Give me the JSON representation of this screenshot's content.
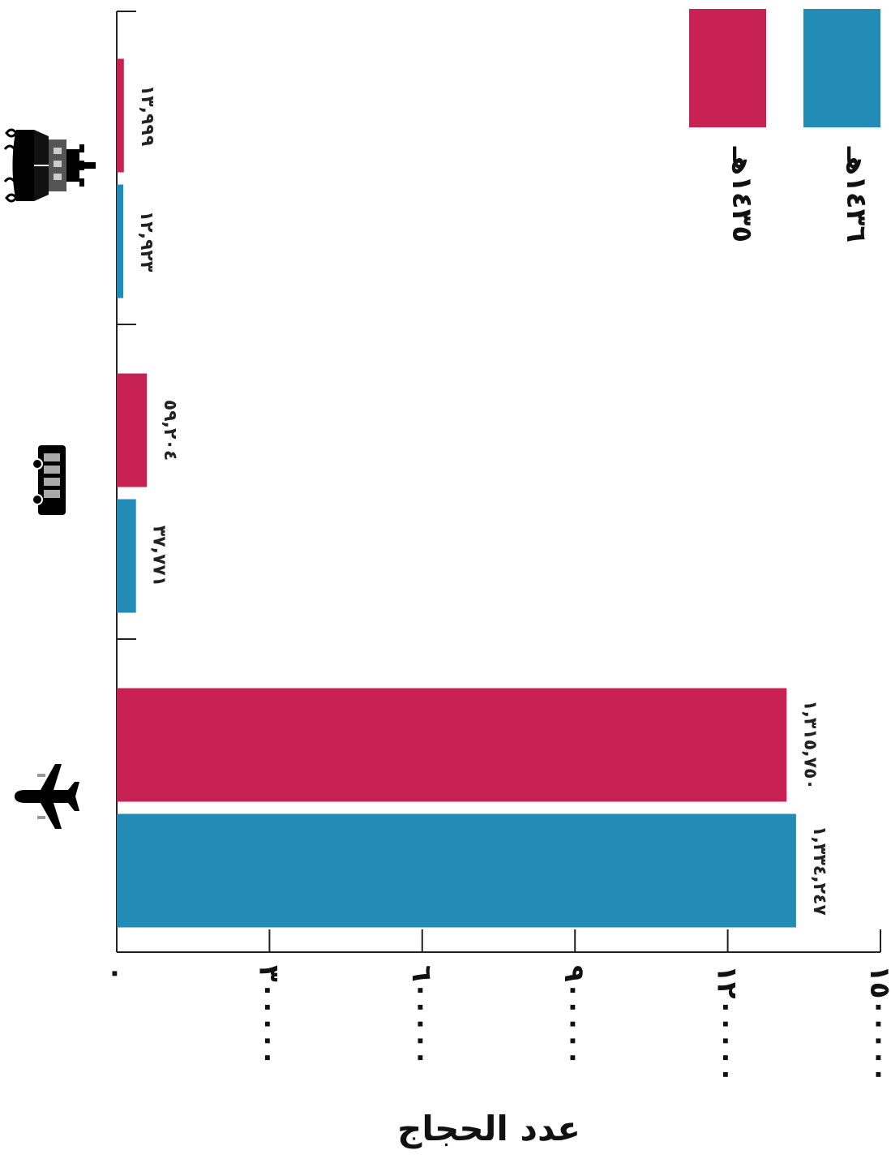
{
  "chart_data": {
    "type": "bar",
    "orientation": "horizontal",
    "rtl": true,
    "categories": [
      "plane",
      "bus",
      "ship"
    ],
    "category_icons": [
      "airplane-icon",
      "bus-icon",
      "ship-icon"
    ],
    "series": [
      {
        "name": "١٤٣٦هـ",
        "color": "#228cb7",
        "values": [
          1334247,
          37771,
          12923
        ],
        "labels": [
          "١,٣٣٤,٢٤٧",
          "٣٧,٧٧١",
          "١٢,٩٢٣"
        ]
      },
      {
        "name": "١٤٣٥هـ",
        "color": "#c82255",
        "values": [
          1315750,
          59204,
          13999
        ],
        "labels": [
          "١,٣١٥,٧٥٠",
          "٥٩,٢٠٤",
          "١٣,٩٩٩"
        ]
      }
    ],
    "xlim": [
      0,
      1500000
    ],
    "ticks": [
      0,
      300000,
      600000,
      900000,
      1200000,
      1500000
    ],
    "tick_labels": [
      "٠",
      "٣٠٠٠٠٠",
      "٦٠٠٠٠٠",
      "٩٠٠٠٠٠",
      "١٢٠٠٠٠٠",
      "١٥٠٠٠٠٠"
    ],
    "xlabel": "عدد الحجاج",
    "ylabel": "",
    "title": "",
    "legend_position": "top-right"
  }
}
